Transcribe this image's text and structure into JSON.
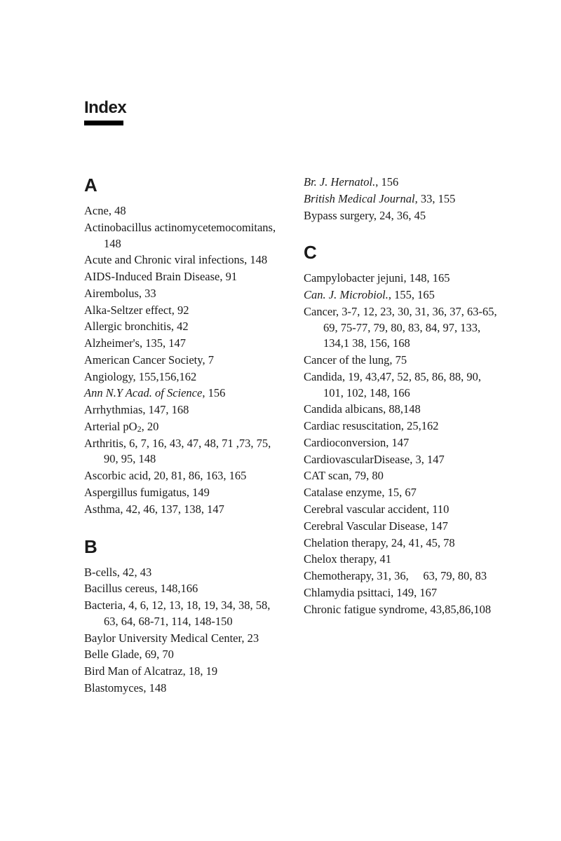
{
  "title": "Index",
  "colors": {
    "text": "#1a1a1a",
    "background": "#ffffff",
    "rule": "#000000"
  },
  "sections": [
    {
      "letter": "A",
      "column": 0,
      "entries": [
        {
          "term": "Acne",
          "pages": "48"
        },
        {
          "term": "Actinobacillus actinomycetemocomitans",
          "pages": "148"
        },
        {
          "term": "Acute and Chronic viral infections",
          "pages": "148"
        },
        {
          "term": "AIDS-Induced Brain Disease",
          "pages": "91"
        },
        {
          "term": "Airembolus",
          "pages": "33"
        },
        {
          "term": "Alka-Seltzer effect",
          "pages": "92"
        },
        {
          "term": "Allergic bronchitis",
          "pages": "42"
        },
        {
          "term": "Alzheimer's",
          "pages": "135, 147"
        },
        {
          "term": "American Cancer Society",
          "pages": "7"
        },
        {
          "term": "Angiology",
          "pages": "155,156,162"
        },
        {
          "term": "Ann N.Y Acad. of Science",
          "pages": "156",
          "italic": true
        },
        {
          "term": "Arrhythmias",
          "pages": "147, 168"
        },
        {
          "term": "Arterial pO₂",
          "pages": "20",
          "hasSub": true
        },
        {
          "term": "Arthritis",
          "pages": "6, 7, 16, 43, 47, 48, 71 ,73, 75, 90, 95, 148"
        },
        {
          "term": "Ascorbic acid",
          "pages": "20, 81, 86, 163, 165"
        },
        {
          "term": "Aspergillus fumigatus",
          "pages": "149"
        },
        {
          "term": "Asthma",
          "pages": "42, 46, 137, 138, 147"
        }
      ]
    },
    {
      "letter": "B",
      "column": 0,
      "entries": [
        {
          "term": "B-cells",
          "pages": "42, 43"
        },
        {
          "term": "Bacillus cereus",
          "pages": "148,166"
        },
        {
          "term": "Bacteria",
          "pages": "4, 6, 12, 13, 18, 19, 34, 38, 58, 63, 64, 68-71, 114, 148-150"
        },
        {
          "term": "Baylor University Medical Center",
          "pages": "23"
        },
        {
          "term": "Belle Glade",
          "pages": "69, 70"
        },
        {
          "term": "Bird Man of Alcatraz",
          "pages": "18, 19"
        },
        {
          "term": "Blastomyces",
          "pages": "148"
        }
      ]
    },
    {
      "letter": "B-cont",
      "column": 1,
      "noHeader": true,
      "entries": [
        {
          "term": "Br. J. Hernatol.",
          "pages": "156",
          "italic": true
        },
        {
          "term": "British Medical Journal",
          "pages": "33, 155",
          "italic": true
        },
        {
          "term": "Bypass surgery",
          "pages": "24, 36, 45"
        }
      ]
    },
    {
      "letter": "C",
      "column": 1,
      "entries": [
        {
          "term": "Campylobacter jejuni",
          "pages": "148, 165"
        },
        {
          "term": "Can. J. Microbiol.",
          "pages": "155, 165",
          "italic": true
        },
        {
          "term": "Cancer",
          "pages": "3-7, 12, 23, 30, 31, 36, 37, 63-65, 69, 75-77, 79, 80, 83, 84, 97, 133, 134,1 38, 156, 168"
        },
        {
          "term": "Cancer of the lung",
          "pages": "75"
        },
        {
          "term": "Candida",
          "pages": "19, 43,47, 52, 85, 86, 88, 90, 101, 102, 148, 166"
        },
        {
          "term": "Candida albicans",
          "pages": "88,148"
        },
        {
          "term": "Cardiac resuscitation",
          "pages": "25,162"
        },
        {
          "term": "Cardioconversion",
          "pages": "147"
        },
        {
          "term": "CardiovascularDisease",
          "pages": "3, 147"
        },
        {
          "term": "CAT scan",
          "pages": "79, 80"
        },
        {
          "term": "Catalase enzyme",
          "pages": "15, 67"
        },
        {
          "term": "Cerebral vascular accident",
          "pages": "110"
        },
        {
          "term": "Cerebral Vascular Disease",
          "pages": "147"
        },
        {
          "term": "Chelation therapy",
          "pages": "24, 41, 45, 78"
        },
        {
          "term": "Chelox therapy",
          "pages": "41"
        },
        {
          "term": "Chemotherapy",
          "pages": "31, 36,  63, 79, 80, 83"
        },
        {
          "term": "Chlamydia psittaci",
          "pages": "149, 167"
        },
        {
          "term": "Chronic fatigue syndrome",
          "pages": "43,85,86,108"
        }
      ]
    }
  ]
}
